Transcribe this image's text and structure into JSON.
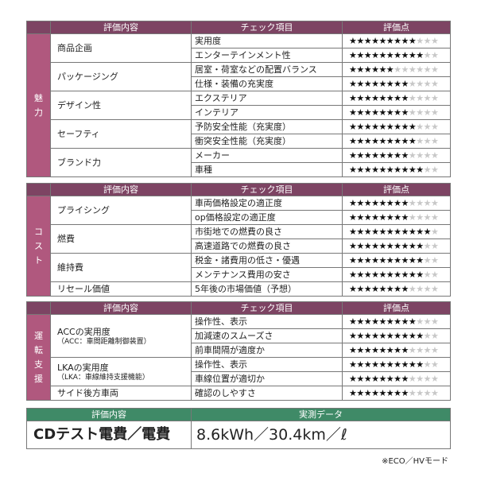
{
  "header": {
    "item": "評価内容",
    "check": "チェック項目",
    "score": "評価点"
  },
  "charm": {
    "side": [
      "魅",
      "力"
    ],
    "groups": [
      {
        "item": "商品企画",
        "rows": [
          {
            "check": "実用度",
            "stars": 9
          },
          {
            "check": "エンターテインメント性",
            "stars": 10
          }
        ]
      },
      {
        "item": "パッケージング",
        "rows": [
          {
            "check": "居室・荷室などの配置バランス",
            "stars": 6
          },
          {
            "check": "仕様・装備の充実度",
            "stars": 8
          }
        ]
      },
      {
        "item": "デザイン性",
        "rows": [
          {
            "check": "エクステリア",
            "stars": 8
          },
          {
            "check": "インテリア",
            "stars": 8
          }
        ]
      },
      {
        "item": "セーフティ",
        "rows": [
          {
            "check": "予防安全性能（充実度）",
            "stars": 9
          },
          {
            "check": "衝突安全性能（充実度）",
            "stars": 9
          }
        ]
      },
      {
        "item": "ブランド力",
        "rows": [
          {
            "check": "メーカー",
            "stars": 8
          },
          {
            "check": "車種",
            "stars": 10
          }
        ]
      }
    ]
  },
  "cost": {
    "side": [
      "コ",
      "ス",
      "ト"
    ],
    "groups": [
      {
        "item": "プライシング",
        "rows": [
          {
            "check": "車両価格設定の適正度",
            "stars": 8
          },
          {
            "check": "op価格設定の適正度",
            "stars": 8
          }
        ]
      },
      {
        "item": "燃費",
        "rows": [
          {
            "check": "市街地での燃費の良さ",
            "stars": 11
          },
          {
            "check": "高速道路での燃費の良さ",
            "stars": 10
          }
        ]
      },
      {
        "item": "維持費",
        "rows": [
          {
            "check": "税金・諸費用の低さ・優遇",
            "stars": 10
          },
          {
            "check": "メンテナンス費用の安さ",
            "stars": 10
          }
        ]
      },
      {
        "item": "リセール価値",
        "rows": [
          {
            "check": "5年後の市場価値（予想）",
            "stars": 8
          }
        ]
      }
    ]
  },
  "drive": {
    "side": [
      "運",
      "転",
      "支",
      "援"
    ],
    "groups": [
      {
        "item": "ACCの実用度",
        "sub": "（ACC：車間距離制御装置）",
        "rows": [
          {
            "check": "操作性、表示",
            "stars": 9
          },
          {
            "check": "加減速のスムーズさ",
            "stars": 10
          },
          {
            "check": "前車間隔が適度か",
            "stars": 8
          }
        ]
      },
      {
        "item": "LKAの実用度",
        "sub": "（LKA：車線維持支援機能）",
        "rows": [
          {
            "check": "操作性、表示",
            "stars": 10
          },
          {
            "check": "車線位置が適切か",
            "stars": 8
          }
        ]
      },
      {
        "item": "サイド後方車両",
        "rows": [
          {
            "check": "確認のしやすさ",
            "stars": 8
          }
        ]
      }
    ]
  },
  "measure": {
    "header_item": "評価内容",
    "header_value": "実測データ",
    "label": "CDテスト電費／電費",
    "value": "8.6kWh／30.4km／ℓ"
  },
  "note": "※ECO／HVモード"
}
